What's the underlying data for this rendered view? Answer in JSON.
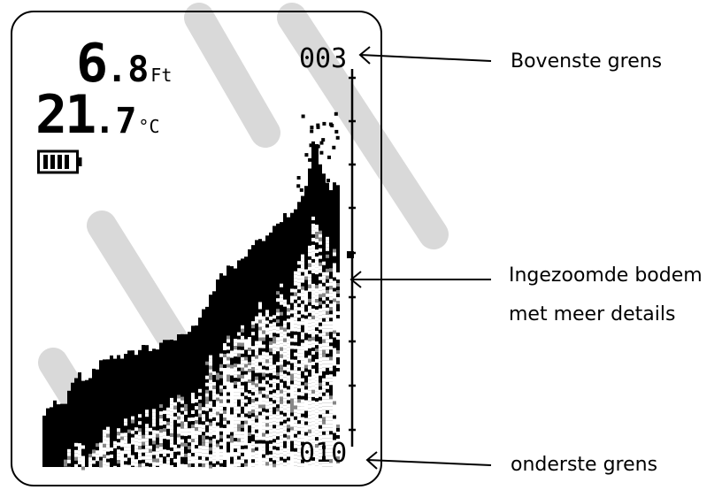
{
  "display": {
    "depth_integer": "6",
    "depth_decimal": ".8",
    "depth_unit": "Ft",
    "temp_integer": "21",
    "temp_decimal": ".7",
    "temp_unit": "°C",
    "battery_icon": "battery-full-icon",
    "scale_top": "003",
    "scale_bottom": "010"
  },
  "callouts": {
    "top": "Bovenste grens",
    "middle_line1": "Ingezoomde bodem",
    "middle_line2": "met meer details",
    "bottom": "onderste grens"
  },
  "colors": {
    "ink": "#000000",
    "watermark": "#d9d9d9"
  }
}
